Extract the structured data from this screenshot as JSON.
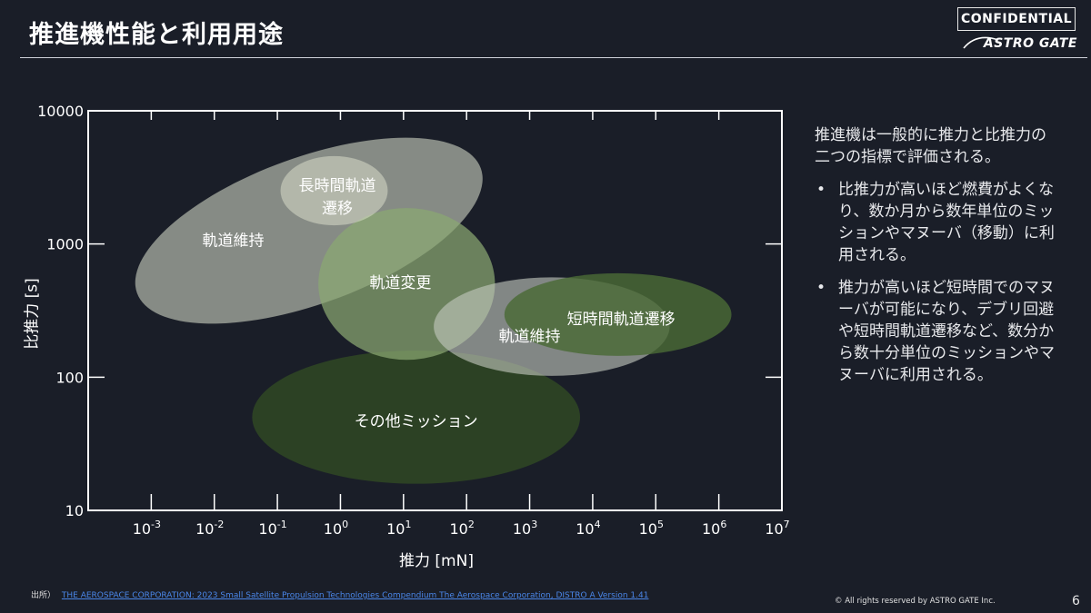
{
  "header": {
    "title": "推進機性能と利用用途",
    "confidential": "CONFIDENTIAL",
    "logo_text": "ASTRO GATE"
  },
  "chart_data": {
    "type": "scatter",
    "xlabel": "推力 [mN]",
    "ylabel": "比推力 [s]",
    "x_scale": "log",
    "y_scale": "log",
    "xlim": [
      0.0001,
      10000000
    ],
    "ylim": [
      10,
      10000
    ],
    "x_ticks": [
      {
        "base": "10",
        "exp": "-3",
        "value": 0.001
      },
      {
        "base": "10",
        "exp": "-2",
        "value": 0.01
      },
      {
        "base": "10",
        "exp": "-1",
        "value": 0.1
      },
      {
        "base": "10",
        "exp": "0",
        "value": 1
      },
      {
        "base": "10",
        "exp": "1",
        "value": 10
      },
      {
        "base": "10",
        "exp": "2",
        "value": 100
      },
      {
        "base": "10",
        "exp": "3",
        "value": 1000
      },
      {
        "base": "10",
        "exp": "4",
        "value": 10000
      },
      {
        "base": "10",
        "exp": "5",
        "value": 100000
      },
      {
        "base": "10",
        "exp": "6",
        "value": 1000000
      },
      {
        "base": "10",
        "exp": "7",
        "value": 10000000
      }
    ],
    "y_ticks": [
      {
        "label": "10000",
        "value": 10000
      },
      {
        "label": "1000",
        "value": 1000
      },
      {
        "label": "100",
        "value": 100
      },
      {
        "label": "10",
        "value": 10
      }
    ],
    "regions": [
      {
        "label": "軌道維持",
        "color": "#c9cebe",
        "opacity": 0.62,
        "log_x": -0.5,
        "log_y": 3.1,
        "log_rx": 2.9,
        "log_ry": 0.55,
        "rotate": -20
      },
      {
        "label": "その他ミッション",
        "color": "#2e4424",
        "opacity": 0.92,
        "log_x": 1.2,
        "log_y": 1.7,
        "log_rx": 2.6,
        "log_ry": 0.5,
        "rotate": 0
      },
      {
        "label": "軌道変更",
        "color": "#8aa872",
        "opacity": 0.72,
        "log_x": 1.05,
        "log_y": 2.7,
        "log_rx": 1.4,
        "log_ry": 0.57,
        "rotate": 0
      },
      {
        "label": "軌道維持",
        "color": "#c4c8bf",
        "opacity": 0.62,
        "log_x": 3.35,
        "log_y": 2.38,
        "log_rx": 1.87,
        "log_ry": 0.37,
        "rotate": 0
      },
      {
        "label": "短時間軌道遷移",
        "color": "#4a6a36",
        "opacity": 0.82,
        "log_x": 4.4,
        "log_y": 2.47,
        "log_rx": 1.8,
        "log_ry": 0.31,
        "rotate": 0
      },
      {
        "label": "長時間軌道\n遷移",
        "color": "#dfe3cf",
        "opacity": 0.5,
        "log_x": -0.1,
        "log_y": 3.4,
        "log_rx": 0.85,
        "log_ry": 0.26,
        "rotate": 0
      }
    ],
    "labels": [
      {
        "text": "軌道維持",
        "log_x": -1.7,
        "log_y": 3.03
      },
      {
        "text": "長時間軌道",
        "log_x": -0.05,
        "log_y": 3.44
      },
      {
        "text": "遷移",
        "log_x": -0.05,
        "log_y": 3.27
      },
      {
        "text": "軌道変更",
        "log_x": 0.95,
        "log_y": 2.71
      },
      {
        "text": "軌道維持",
        "log_x": 3.0,
        "log_y": 2.31
      },
      {
        "text": "短時間軌道遷移",
        "log_x": 4.45,
        "log_y": 2.44
      },
      {
        "text": "その他ミッション",
        "log_x": 1.2,
        "log_y": 1.67
      }
    ]
  },
  "description": {
    "intro": "推進機は一般的に推力と比推力の二つの指標で評価される。",
    "bullets": [
      "比推力が高いほど燃費がよくなり、数か月から数年単位のミッションやマヌーバ（移動）に利用される。",
      "推力が高いほど短時間でのマヌーバが可能になり、デブリ回避や短時間軌道遷移など、数分から数十分単位のミッションやマヌーバに利用される。"
    ],
    "bullet_symbol": "•"
  },
  "footer": {
    "source_label": "出所）",
    "source_link": "THE AEROSPACE CORPORATION: 2023  Small Satellite Propulsion Technologies Compendium The Aerospace Corporation, DISTRO A Version 1.41",
    "copyright": "© All rights reserved by ASTRO GATE Inc.",
    "page_number": "6"
  }
}
